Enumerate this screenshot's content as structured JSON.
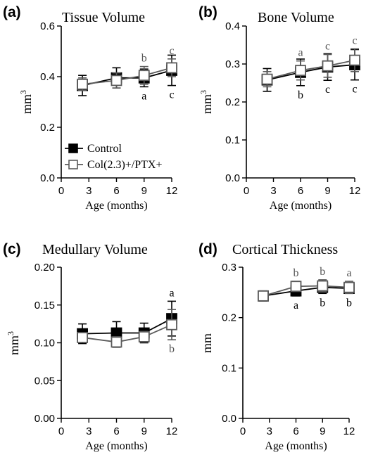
{
  "chart_data": [
    {
      "type": "line",
      "panel_label": "(a)",
      "title": "Tissue Volume",
      "xlabel": "Age (months)",
      "ylabel": "mm3",
      "ylabel_base": "mm",
      "ylabel_sup": "3",
      "xlim": [
        0,
        12
      ],
      "ylim": [
        0,
        0.6
      ],
      "x_ticks": [
        0,
        3,
        6,
        9,
        12
      ],
      "y_ticks": [
        "0.0",
        "0.2",
        "0.4",
        "0.6"
      ],
      "x": [
        2.3,
        6,
        9,
        12
      ],
      "series": [
        {
          "name": "Control",
          "values": [
            0.365,
            0.395,
            0.395,
            0.425
          ],
          "errors": [
            0.04,
            0.04,
            0.035,
            0.06
          ]
        },
        {
          "name": "Col(2.3)+/PTX+",
          "values": [
            0.37,
            0.385,
            0.405,
            0.435
          ],
          "errors": [
            0.025,
            0.03,
            0.035,
            0.035
          ]
        }
      ],
      "annotations": [
        {
          "x": 9,
          "text": "b",
          "series": "Col(2.3)+/PTX+",
          "position": "above"
        },
        {
          "x": 12,
          "text": "c",
          "series": "Col(2.3)+/PTX+",
          "position": "above"
        },
        {
          "x": 9,
          "text": "a",
          "series": "Control",
          "position": "below"
        },
        {
          "x": 12,
          "text": "c",
          "series": "Control",
          "position": "below"
        }
      ],
      "legend": {
        "position": "bottom-left",
        "entries": [
          "Control",
          "Col(2.3)+/PTX+"
        ]
      }
    },
    {
      "type": "line",
      "panel_label": "(b)",
      "title": "Bone Volume",
      "xlabel": "Age (months)",
      "ylabel": "mm3",
      "ylabel_base": "mm",
      "ylabel_sup": "3",
      "xlim": [
        0,
        12
      ],
      "ylim": [
        0,
        0.4
      ],
      "x_ticks": [
        0,
        3,
        6,
        9,
        12
      ],
      "y_ticks": [
        "0.0",
        "0.1",
        "0.2",
        "0.3",
        "0.4"
      ],
      "x": [
        2.3,
        6,
        9,
        12
      ],
      "series": [
        {
          "name": "Control",
          "values": [
            0.258,
            0.278,
            0.292,
            0.298
          ],
          "errors": [
            0.03,
            0.035,
            0.035,
            0.04
          ]
        },
        {
          "name": "Col(2.3)+/PTX+",
          "values": [
            0.26,
            0.283,
            0.295,
            0.31
          ],
          "errors": [
            0.02,
            0.025,
            0.03,
            0.03
          ]
        }
      ],
      "annotations": [
        {
          "x": 6,
          "text": "a",
          "series": "Col(2.3)+/PTX+",
          "position": "above"
        },
        {
          "x": 9,
          "text": "c",
          "series": "Col(2.3)+/PTX+",
          "position": "above"
        },
        {
          "x": 12,
          "text": "c",
          "series": "Col(2.3)+/PTX+",
          "position": "above"
        },
        {
          "x": 6,
          "text": "b",
          "series": "Control",
          "position": "below"
        },
        {
          "x": 9,
          "text": "c",
          "series": "Control",
          "position": "below"
        },
        {
          "x": 12,
          "text": "c",
          "series": "Control",
          "position": "below"
        }
      ]
    },
    {
      "type": "line",
      "panel_label": "(c)",
      "title": "Medullary Volume",
      "xlabel": "Age (months)",
      "ylabel": "mm3",
      "ylabel_base": "mm",
      "ylabel_sup": "3",
      "xlim": [
        0,
        12
      ],
      "ylim": [
        0,
        0.2
      ],
      "x_ticks": [
        0,
        3,
        6,
        9,
        12
      ],
      "y_ticks": [
        "0.00",
        "0.05",
        "0.10",
        "0.15",
        "0.20"
      ],
      "x": [
        2.3,
        6,
        9,
        12
      ],
      "series": [
        {
          "name": "Control",
          "values": [
            0.112,
            0.113,
            0.113,
            0.132
          ],
          "errors": [
            0.013,
            0.015,
            0.013,
            0.023
          ]
        },
        {
          "name": "Col(2.3)+/PTX+",
          "values": [
            0.107,
            0.101,
            0.108,
            0.124
          ],
          "errors": [
            0.006,
            0.007,
            0.007,
            0.02
          ]
        }
      ],
      "annotations": [
        {
          "x": 12,
          "text": "a",
          "series": "Control",
          "position": "above"
        },
        {
          "x": 12,
          "text": "b",
          "series": "Col(2.3)+/PTX+",
          "position": "below"
        }
      ]
    },
    {
      "type": "line",
      "panel_label": "(d)",
      "title": "Cortical Thickness",
      "xlabel": "Age (months)",
      "ylabel": "mm",
      "ylabel_base": "mm",
      "ylabel_sup": "",
      "xlim": [
        0,
        12
      ],
      "ylim": [
        0,
        0.3
      ],
      "x_ticks": [
        0,
        3,
        6,
        9,
        12
      ],
      "y_ticks": [
        "0.0",
        "0.1",
        "0.2",
        "0.3"
      ],
      "x": [
        2.3,
        6,
        9,
        12
      ],
      "series": [
        {
          "name": "Control",
          "values": [
            0.243,
            0.253,
            0.26,
            0.258
          ],
          "errors": [
            0.01,
            0.01,
            0.012,
            0.01
          ]
        },
        {
          "name": "Col(2.3)+/PTX+",
          "values": [
            0.243,
            0.262,
            0.263,
            0.26
          ],
          "errors": [
            0.008,
            0.01,
            0.012,
            0.012
          ]
        }
      ],
      "annotations": [
        {
          "x": 6,
          "text": "b",
          "series": "Col(2.3)+/PTX+",
          "position": "above"
        },
        {
          "x": 9,
          "text": "b",
          "series": "Col(2.3)+/PTX+",
          "position": "above"
        },
        {
          "x": 12,
          "text": "a",
          "series": "Col(2.3)+/PTX+",
          "position": "above"
        },
        {
          "x": 6,
          "text": "a",
          "series": "Control",
          "position": "below"
        },
        {
          "x": 9,
          "text": "b",
          "series": "Control",
          "position": "below"
        },
        {
          "x": 12,
          "text": "b",
          "series": "Control",
          "position": "below"
        }
      ]
    }
  ],
  "colors": {
    "control": "#000000",
    "treated": "#5a5a5a",
    "treated_fill": "#ffffff",
    "axis": "#000000",
    "annotation_control": "#000000",
    "annotation_treated": "#555555"
  }
}
